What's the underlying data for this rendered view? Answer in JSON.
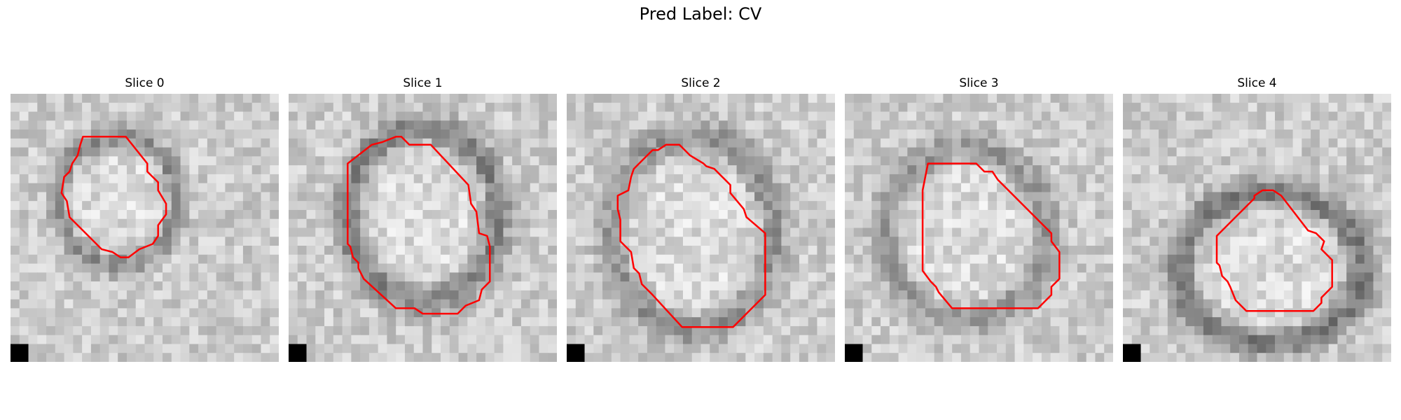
{
  "figure": {
    "title": "Pred Label: CV"
  },
  "panels": [
    {
      "title": "Slice 0",
      "seed": 11,
      "ring_strength": 0.55,
      "center": [
        0.4,
        0.4
      ],
      "radius": [
        0.22,
        0.24
      ],
      "contour": [
        [
          0.27,
          0.16
        ],
        [
          0.43,
          0.16
        ],
        [
          0.51,
          0.26
        ],
        [
          0.51,
          0.29
        ],
        [
          0.55,
          0.33
        ],
        [
          0.55,
          0.36
        ],
        [
          0.58,
          0.41
        ],
        [
          0.58,
          0.45
        ],
        [
          0.55,
          0.49
        ],
        [
          0.55,
          0.53
        ],
        [
          0.53,
          0.56
        ],
        [
          0.48,
          0.58
        ],
        [
          0.44,
          0.61
        ],
        [
          0.41,
          0.61
        ],
        [
          0.38,
          0.59
        ],
        [
          0.34,
          0.58
        ],
        [
          0.22,
          0.46
        ],
        [
          0.21,
          0.4
        ],
        [
          0.19,
          0.37
        ],
        [
          0.2,
          0.31
        ],
        [
          0.22,
          0.29
        ],
        [
          0.23,
          0.26
        ],
        [
          0.25,
          0.23
        ],
        [
          0.26,
          0.19
        ]
      ]
    },
    {
      "title": "Slice 1",
      "seed": 23,
      "ring_strength": 0.65,
      "center": [
        0.5,
        0.45
      ],
      "radius": [
        0.28,
        0.32
      ],
      "contour": [
        [
          0.31,
          0.19
        ],
        [
          0.35,
          0.18
        ],
        [
          0.4,
          0.16
        ],
        [
          0.42,
          0.16
        ],
        [
          0.45,
          0.19
        ],
        [
          0.53,
          0.19
        ],
        [
          0.67,
          0.34
        ],
        [
          0.68,
          0.41
        ],
        [
          0.7,
          0.44
        ],
        [
          0.71,
          0.52
        ],
        [
          0.74,
          0.53
        ],
        [
          0.75,
          0.57
        ],
        [
          0.75,
          0.7
        ],
        [
          0.72,
          0.73
        ],
        [
          0.71,
          0.77
        ],
        [
          0.66,
          0.79
        ],
        [
          0.63,
          0.82
        ],
        [
          0.5,
          0.82
        ],
        [
          0.47,
          0.8
        ],
        [
          0.4,
          0.8
        ],
        [
          0.28,
          0.69
        ],
        [
          0.26,
          0.65
        ],
        [
          0.26,
          0.63
        ],
        [
          0.24,
          0.61
        ],
        [
          0.23,
          0.57
        ],
        [
          0.22,
          0.56
        ],
        [
          0.22,
          0.26
        ]
      ]
    },
    {
      "title": "Slice 2",
      "seed": 37,
      "ring_strength": 0.5,
      "center": [
        0.47,
        0.52
      ],
      "radius": [
        0.3,
        0.36
      ],
      "contour": [
        [
          0.37,
          0.19
        ],
        [
          0.42,
          0.19
        ],
        [
          0.44,
          0.21
        ],
        [
          0.46,
          0.23
        ],
        [
          0.51,
          0.26
        ],
        [
          0.52,
          0.27
        ],
        [
          0.55,
          0.28
        ],
        [
          0.58,
          0.31
        ],
        [
          0.61,
          0.34
        ],
        [
          0.61,
          0.37
        ],
        [
          0.66,
          0.43
        ],
        [
          0.67,
          0.46
        ],
        [
          0.74,
          0.52
        ],
        [
          0.74,
          0.75
        ],
        [
          0.68,
          0.81
        ],
        [
          0.62,
          0.87
        ],
        [
          0.43,
          0.87
        ],
        [
          0.32,
          0.75
        ],
        [
          0.28,
          0.71
        ],
        [
          0.27,
          0.67
        ],
        [
          0.25,
          0.65
        ],
        [
          0.24,
          0.59
        ],
        [
          0.2,
          0.55
        ],
        [
          0.2,
          0.47
        ],
        [
          0.19,
          0.43
        ],
        [
          0.19,
          0.38
        ],
        [
          0.23,
          0.36
        ],
        [
          0.24,
          0.31
        ],
        [
          0.25,
          0.28
        ],
        [
          0.28,
          0.25
        ],
        [
          0.32,
          0.21
        ],
        [
          0.34,
          0.21
        ]
      ]
    },
    {
      "title": "Slice 3",
      "seed": 53,
      "ring_strength": 0.45,
      "center": [
        0.45,
        0.52
      ],
      "radius": [
        0.3,
        0.32
      ],
      "contour": [
        [
          0.31,
          0.26
        ],
        [
          0.49,
          0.26
        ],
        [
          0.52,
          0.29
        ],
        [
          0.55,
          0.29
        ],
        [
          0.57,
          0.32
        ],
        [
          0.77,
          0.52
        ],
        [
          0.77,
          0.55
        ],
        [
          0.8,
          0.59
        ],
        [
          0.8,
          0.69
        ],
        [
          0.77,
          0.72
        ],
        [
          0.77,
          0.75
        ],
        [
          0.72,
          0.8
        ],
        [
          0.4,
          0.8
        ],
        [
          0.35,
          0.74
        ],
        [
          0.34,
          0.72
        ],
        [
          0.32,
          0.7
        ],
        [
          0.29,
          0.66
        ],
        [
          0.29,
          0.36
        ]
      ]
    },
    {
      "title": "Slice 4",
      "seed": 71,
      "ring_strength": 0.7,
      "center": [
        0.55,
        0.65
      ],
      "radius": [
        0.34,
        0.28
      ],
      "contour": [
        [
          0.49,
          0.39
        ],
        [
          0.49,
          0.38
        ],
        [
          0.52,
          0.36
        ],
        [
          0.56,
          0.36
        ],
        [
          0.59,
          0.38
        ],
        [
          0.69,
          0.51
        ],
        [
          0.72,
          0.52
        ],
        [
          0.75,
          0.55
        ],
        [
          0.74,
          0.58
        ],
        [
          0.78,
          0.62
        ],
        [
          0.78,
          0.72
        ],
        [
          0.74,
          0.76
        ],
        [
          0.74,
          0.78
        ],
        [
          0.71,
          0.81
        ],
        [
          0.46,
          0.81
        ],
        [
          0.42,
          0.77
        ],
        [
          0.4,
          0.72
        ],
        [
          0.39,
          0.7
        ],
        [
          0.37,
          0.68
        ],
        [
          0.36,
          0.64
        ],
        [
          0.35,
          0.63
        ],
        [
          0.35,
          0.53
        ],
        [
          0.43,
          0.45
        ]
      ]
    }
  ]
}
